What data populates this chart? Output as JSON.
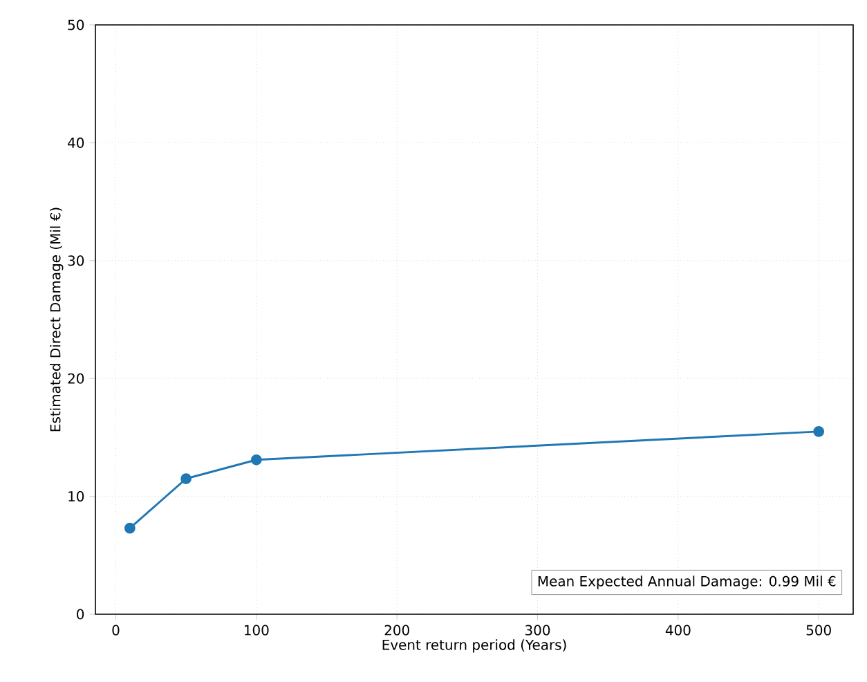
{
  "chart_data": {
    "type": "line",
    "xlabel": "Event return period (Years)",
    "ylabel": "Estimated Direct Damage (Mil €)",
    "x": [
      10,
      50,
      100,
      500
    ],
    "series": [
      {
        "color": "#1f77b4",
        "values": [
          7.3,
          11.5,
          13.1,
          15.5
        ]
      }
    ],
    "xlim": [
      -14.5,
      524.5
    ],
    "ylim": [
      0,
      50
    ],
    "xticks": [
      0,
      100,
      200,
      300,
      400,
      500
    ],
    "yticks": [
      0,
      10,
      20,
      30,
      40,
      50
    ],
    "grid": true,
    "marker": "circle",
    "line_style": "solid",
    "annotations": [
      "Mean Expected Annual Damage: 0.99 Mil €"
    ]
  }
}
